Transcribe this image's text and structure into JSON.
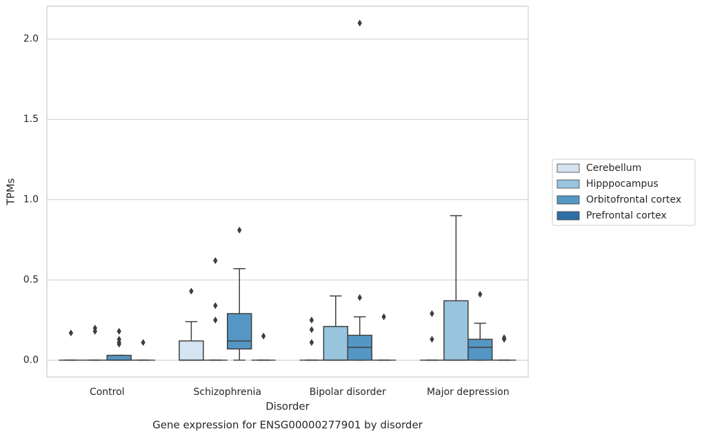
{
  "chart_data": {
    "type": "box",
    "title": "Gene expression for ENSG00000277901 by disorder",
    "xlabel": "Disorder",
    "ylabel": "TPMs",
    "categories": [
      "Control",
      "Schizophrenia",
      "Bipolar disorder",
      "Major depression"
    ],
    "ylim": [
      -0.105,
      2.205
    ],
    "yticks": [
      {
        "value": 0,
        "label": "0.0"
      },
      0.5,
      {
        "value": 1,
        "label": "1.0"
      },
      1.5,
      {
        "value": 2,
        "label": "2.0"
      }
    ],
    "grid": true,
    "legend": "right",
    "series": [
      {
        "name": "Cerebellum",
        "color": "#d4e4f3",
        "values": [
          {
            "whislo": 0,
            "q1": 0,
            "med": 0,
            "q3": 0,
            "whishi": 0,
            "fliers": [
              0.17
            ]
          },
          {
            "whislo": 0,
            "q1": 0,
            "med": 0,
            "q3": 0.12,
            "whishi": 0.24,
            "fliers": [
              0.43
            ]
          },
          {
            "whislo": 0,
            "q1": 0,
            "med": 0,
            "q3": 0,
            "whishi": 0,
            "fliers": [
              0.25,
              0.19,
              0.11
            ]
          },
          {
            "whislo": 0,
            "q1": 0,
            "med": 0,
            "q3": 0,
            "whishi": 0,
            "fliers": [
              0.29,
              0.13
            ]
          }
        ]
      },
      {
        "name": "Hipppocampus",
        "color": "#98c4de",
        "values": [
          {
            "whislo": 0,
            "q1": 0,
            "med": 0,
            "q3": 0,
            "whishi": 0,
            "fliers": [
              0.2,
              0.18
            ]
          },
          {
            "whislo": 0,
            "q1": 0,
            "med": 0,
            "q3": 0,
            "whishi": 0,
            "fliers": [
              0.62,
              0.34,
              0.25
            ]
          },
          {
            "whislo": 0,
            "q1": 0,
            "med": 0,
            "q3": 0.21,
            "whishi": 0.4,
            "fliers": []
          },
          {
            "whislo": 0,
            "q1": 0,
            "med": 0,
            "q3": 0.37,
            "whishi": 0.9,
            "fliers": []
          }
        ]
      },
      {
        "name": "Orbitofrontal cortex",
        "color": "#5597c4",
        "values": [
          {
            "whislo": 0,
            "q1": 0,
            "med": 0,
            "q3": 0.03,
            "whishi": 0.03,
            "fliers": [
              0.18,
              0.13,
              0.11,
              0.1
            ]
          },
          {
            "whislo": 0,
            "q1": 0.07,
            "med": 0.12,
            "q3": 0.29,
            "whishi": 0.57,
            "fliers": [
              0.81
            ]
          },
          {
            "whislo": 0,
            "q1": 0,
            "med": 0.08,
            "q3": 0.155,
            "whishi": 0.27,
            "fliers": [
              0.39,
              2.1
            ]
          },
          {
            "whislo": 0,
            "q1": 0,
            "med": 0.08,
            "q3": 0.13,
            "whishi": 0.23,
            "fliers": [
              0.41
            ]
          }
        ]
      },
      {
        "name": "Prefrontal cortex",
        "color": "#2f6ea6",
        "values": [
          {
            "whislo": 0,
            "q1": 0,
            "med": 0,
            "q3": 0,
            "whishi": 0,
            "fliers": [
              0.11
            ]
          },
          {
            "whislo": 0,
            "q1": 0,
            "med": 0,
            "q3": 0,
            "whishi": 0,
            "fliers": [
              0.15
            ]
          },
          {
            "whislo": 0,
            "q1": 0,
            "med": 0,
            "q3": 0,
            "whishi": 0,
            "fliers": [
              0.27
            ]
          },
          {
            "whislo": 0,
            "q1": 0,
            "med": 0,
            "q3": 0,
            "whishi": 0,
            "fliers": [
              0.14,
              0.13
            ]
          }
        ]
      }
    ]
  }
}
